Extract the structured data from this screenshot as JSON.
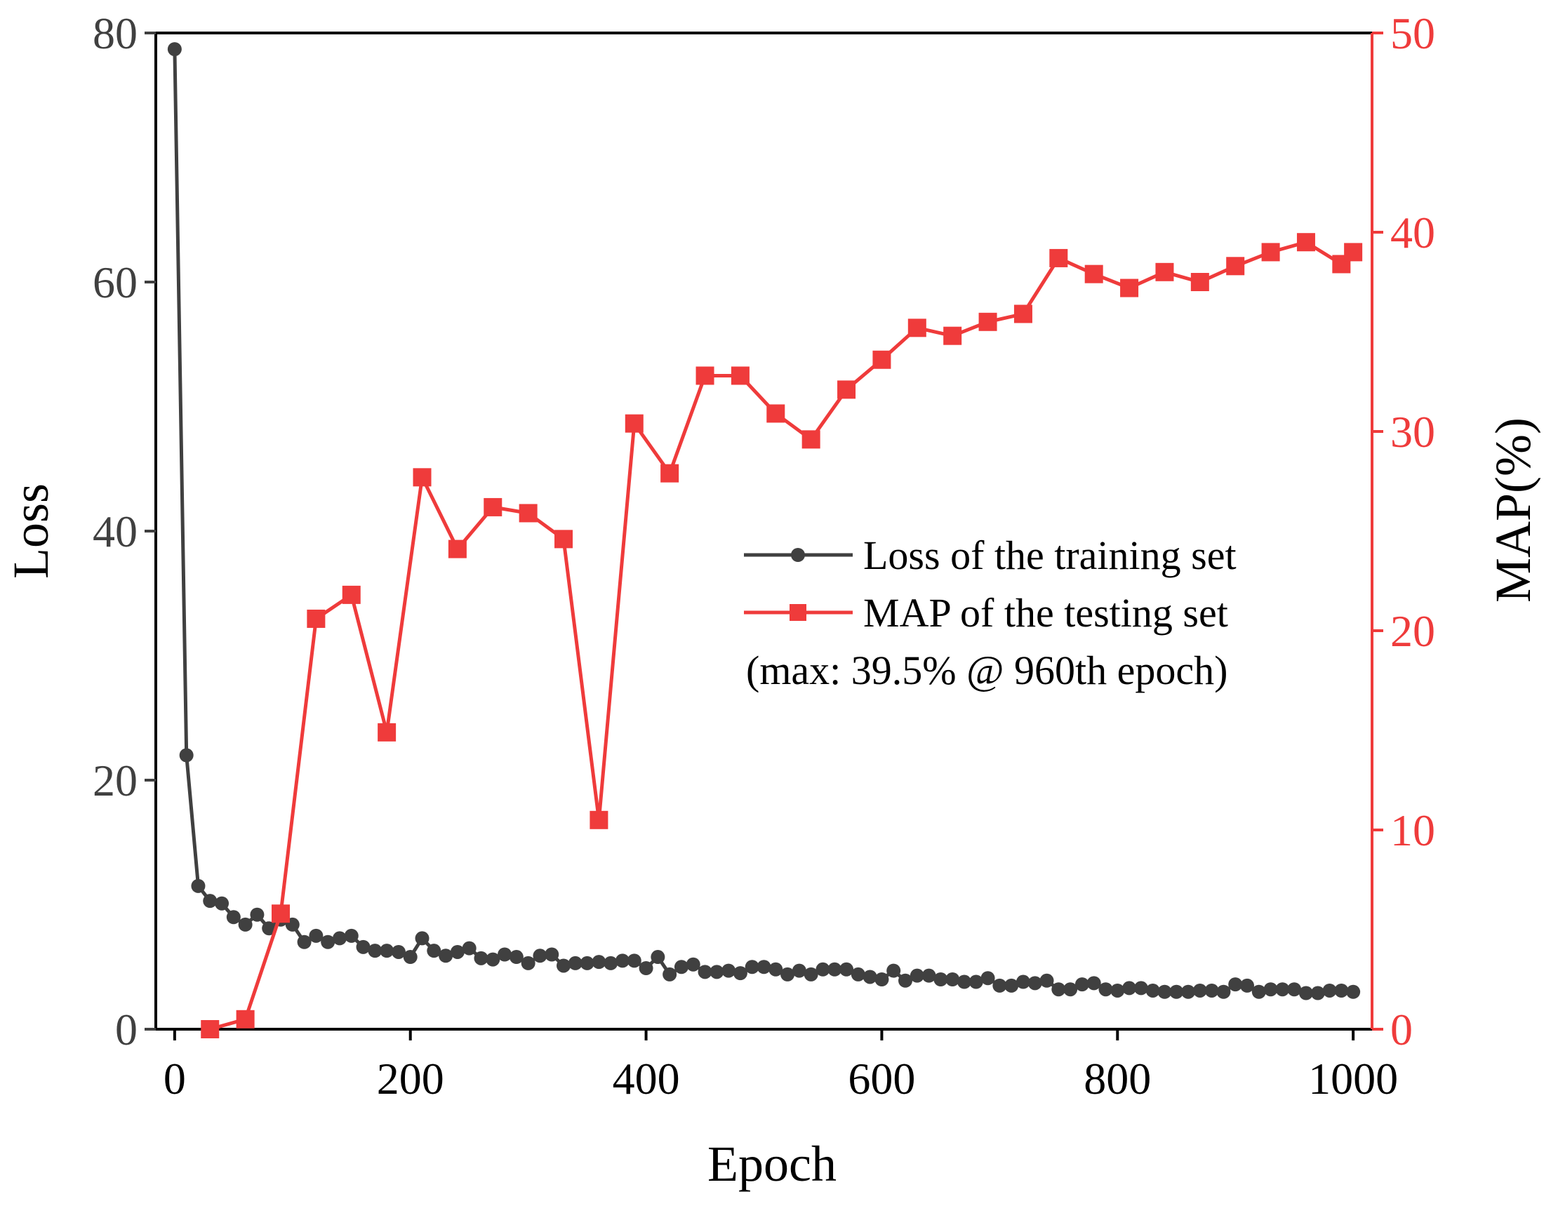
{
  "chart_data": {
    "type": "line",
    "xlabel": "Epoch",
    "ylabel_left": "Loss",
    "ylabel_right": "MAP(%)",
    "xlim": [
      -16,
      1016
    ],
    "ylim_left": [
      0,
      80
    ],
    "ylim_right": [
      0,
      50
    ],
    "x_ticks": [
      "0",
      "200",
      "400",
      "600",
      "800",
      "1000"
    ],
    "x_tick_values": [
      0,
      200,
      400,
      600,
      800,
      1000
    ],
    "y_left_ticks": [
      "0",
      "20",
      "40",
      "60",
      "80"
    ],
    "y_left_tick_values": [
      0,
      20,
      40,
      60,
      80
    ],
    "y_right_ticks": [
      "0",
      "10",
      "20",
      "30",
      "40",
      "50"
    ],
    "y_right_tick_values": [
      0,
      10,
      20,
      30,
      40,
      50
    ],
    "grid": false,
    "legend_position": "center-right",
    "legend_note": "(max: 39.5% @ 960th epoch)",
    "series": [
      {
        "name": "Loss of the training set",
        "axis": "left",
        "color": "#404040",
        "marker": "circle",
        "x": [
          0,
          10,
          20,
          30,
          40,
          50,
          60,
          70,
          80,
          90,
          100,
          110,
          120,
          130,
          140,
          150,
          160,
          170,
          180,
          190,
          200,
          210,
          220,
          230,
          240,
          250,
          260,
          270,
          280,
          290,
          300,
          310,
          320,
          330,
          340,
          350,
          360,
          370,
          380,
          390,
          400,
          410,
          420,
          430,
          440,
          450,
          460,
          470,
          480,
          490,
          500,
          510,
          520,
          530,
          540,
          550,
          560,
          570,
          580,
          590,
          600,
          610,
          620,
          630,
          640,
          650,
          660,
          670,
          680,
          690,
          700,
          710,
          720,
          730,
          740,
          750,
          760,
          770,
          780,
          790,
          800,
          810,
          820,
          830,
          840,
          850,
          860,
          870,
          880,
          890,
          900,
          910,
          920,
          930,
          940,
          950,
          960,
          970,
          980,
          990,
          1000
        ],
        "values": [
          78.7,
          22.0,
          11.5,
          10.3,
          10.1,
          9.0,
          8.4,
          9.2,
          8.1,
          8.8,
          8.4,
          7.0,
          7.5,
          7.0,
          7.3,
          7.5,
          6.6,
          6.3,
          6.3,
          6.2,
          5.8,
          7.3,
          6.3,
          5.9,
          6.2,
          6.5,
          5.7,
          5.6,
          6.0,
          5.8,
          5.3,
          5.9,
          6.0,
          5.1,
          5.3,
          5.3,
          5.4,
          5.3,
          5.5,
          5.5,
          4.9,
          5.8,
          4.4,
          5.0,
          5.2,
          4.6,
          4.6,
          4.7,
          4.5,
          5.0,
          5.0,
          4.8,
          4.4,
          4.7,
          4.4,
          4.8,
          4.8,
          4.8,
          4.4,
          4.2,
          4.0,
          4.7,
          3.9,
          4.3,
          4.3,
          4.0,
          4.0,
          3.8,
          3.8,
          4.1,
          3.5,
          3.5,
          3.8,
          3.7,
          3.9,
          3.2,
          3.2,
          3.6,
          3.7,
          3.2,
          3.1,
          3.3,
          3.3,
          3.1,
          3.0,
          3.0,
          3.0,
          3.1,
          3.1,
          3.0,
          3.6,
          3.5,
          3.0,
          3.2,
          3.2,
          3.2,
          2.9,
          2.9,
          3.1,
          3.1,
          3.0
        ]
      },
      {
        "name": "MAP of the testing set",
        "axis": "right",
        "color": "#ef3b3b",
        "marker": "square",
        "x": [
          30,
          60,
          90,
          120,
          150,
          180,
          210,
          240,
          270,
          300,
          330,
          360,
          390,
          420,
          450,
          480,
          510,
          540,
          570,
          600,
          630,
          660,
          690,
          720,
          750,
          780,
          810,
          840,
          870,
          900,
          930,
          960,
          990,
          1000
        ],
        "values": [
          0.0,
          0.5,
          5.8,
          20.6,
          21.8,
          14.9,
          27.7,
          24.1,
          26.2,
          25.9,
          24.6,
          10.5,
          30.4,
          27.9,
          32.8,
          32.8,
          30.9,
          29.6,
          32.1,
          33.6,
          35.2,
          34.8,
          35.5,
          35.9,
          38.7,
          37.9,
          37.2,
          38.0,
          37.5,
          38.3,
          39.0,
          39.5,
          38.4,
          39.0
        ]
      }
    ]
  }
}
